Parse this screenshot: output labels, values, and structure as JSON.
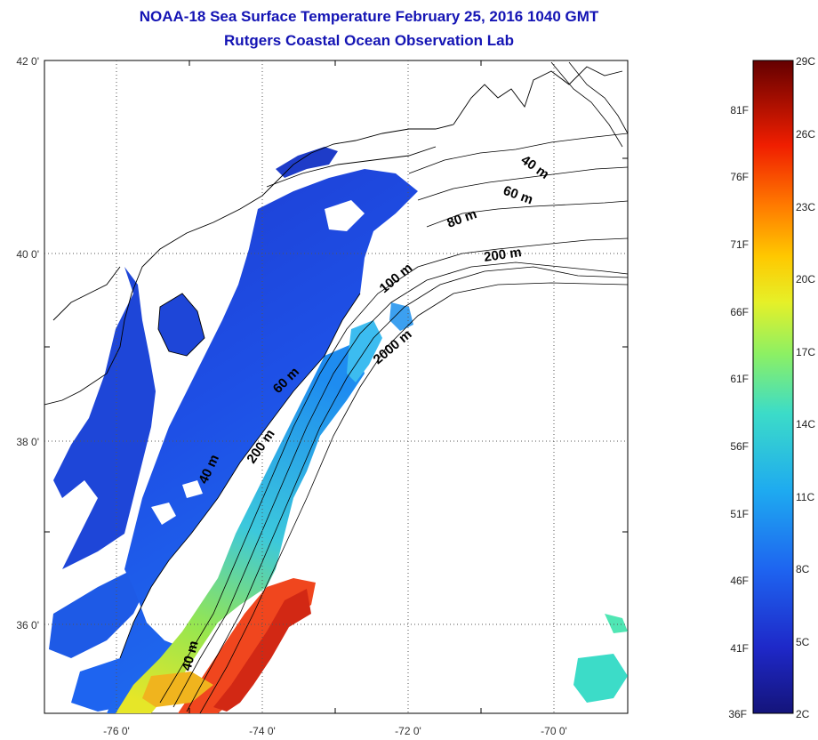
{
  "title": "NOAA-18 Sea Surface Temperature February 25, 2016 1040 GMT",
  "subtitle": "Rutgers Coastal Ocean Observation Lab",
  "map": {
    "lon_ticks": [
      "-76 0'",
      "-74 0'",
      "-72 0'",
      "-70 0'"
    ],
    "lat_ticks": [
      "42 0'",
      "40 0'",
      "38 0'",
      "36 0'"
    ],
    "depth_labels": [
      "40 m",
      "60 m",
      "80 m",
      "200 m",
      "100 m",
      "2000 m",
      "60 m",
      "200 m",
      "40 m",
      "40 m"
    ]
  },
  "colorbar": {
    "celsius_labels": [
      "29C",
      "26C",
      "23C",
      "20C",
      "17C",
      "14C",
      "11C",
      "8C",
      "5C",
      "2C"
    ],
    "fahrenheit_labels": [
      "81F",
      "76F",
      "71F",
      "66F",
      "61F",
      "56F",
      "51F",
      "46F",
      "41F",
      "36F"
    ],
    "colors": [
      "#7a0000",
      "#c80000",
      "#ff3c00",
      "#ff9600",
      "#ffe600",
      "#aaff3c",
      "#3cdcaa",
      "#1e96ff",
      "#1e46e6",
      "#1e1ea0"
    ]
  }
}
